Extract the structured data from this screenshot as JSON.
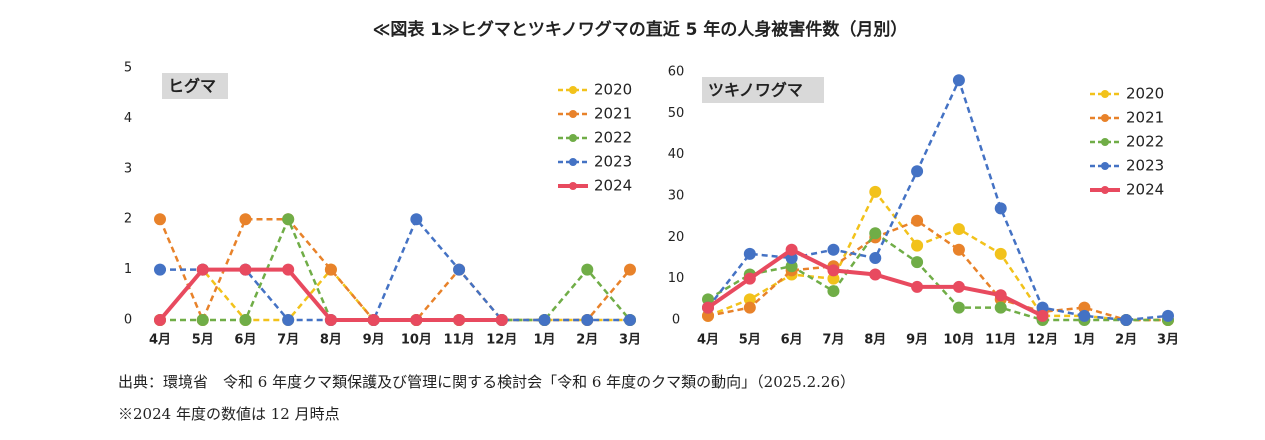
{
  "title": "≪図表 1≫ヒグマとツキノワグマの直近 5 年の人身被害件数（月別）",
  "source": "出典：環境省　令和 6 年度クマ類保護及び管理に関する検討会「令和 6 年度のクマ類の動向」（2025.2.26）",
  "note": "※2024 年度の数値は 12 月時点",
  "chart_data": [
    {
      "type": "line",
      "title": "ヒグマ",
      "legend": "top-right",
      "categories": [
        "4月",
        "5月",
        "6月",
        "7月",
        "8月",
        "9月",
        "10月",
        "11月",
        "12月",
        "1月",
        "2月",
        "3月"
      ],
      "ylim": [
        0,
        5
      ],
      "yticks": [
        0,
        1,
        2,
        3,
        4,
        5
      ],
      "series": [
        {
          "name": "2020",
          "color": "#f2c21b",
          "line_style": "dashed",
          "values": [
            0,
            1,
            0,
            0,
            1,
            0,
            0,
            0,
            0,
            0,
            0,
            0
          ]
        },
        {
          "name": "2021",
          "color": "#e8822a",
          "line_style": "dashed",
          "values": [
            2,
            0,
            2,
            2,
            1,
            0,
            0,
            1,
            0,
            0,
            0,
            1
          ]
        },
        {
          "name": "2022",
          "color": "#70ad47",
          "line_style": "dashed",
          "values": [
            0,
            0,
            0,
            2,
            0,
            0,
            0,
            0,
            0,
            0,
            1,
            0
          ]
        },
        {
          "name": "2023",
          "color": "#4472c4",
          "line_style": "dashed",
          "values": [
            1,
            1,
            1,
            0,
            0,
            0,
            2,
            1,
            0,
            0,
            0,
            0
          ]
        },
        {
          "name": "2024",
          "color": "#e84a5f",
          "line_style": "solid",
          "values": [
            0,
            1,
            1,
            1,
            0,
            0,
            0,
            0,
            0,
            null,
            null,
            null
          ]
        }
      ]
    },
    {
      "type": "line",
      "title": "ツキノワグマ",
      "legend": "top-right",
      "categories": [
        "4月",
        "5月",
        "6月",
        "7月",
        "8月",
        "9月",
        "10月",
        "11月",
        "12月",
        "1月",
        "2月",
        "3月"
      ],
      "ylim": [
        0,
        60
      ],
      "yticks": [
        0,
        10,
        20,
        30,
        40,
        50,
        60
      ],
      "series": [
        {
          "name": "2020",
          "color": "#f2c21b",
          "line_style": "dashed",
          "values": [
            1,
            5,
            11,
            10,
            31,
            18,
            22,
            16,
            1,
            1,
            0,
            0
          ]
        },
        {
          "name": "2021",
          "color": "#e8822a",
          "line_style": "dashed",
          "values": [
            1,
            3,
            12,
            13,
            20,
            24,
            17,
            5,
            2,
            3,
            0,
            0
          ]
        },
        {
          "name": "2022",
          "color": "#70ad47",
          "line_style": "dashed",
          "values": [
            5,
            11,
            13,
            7,
            21,
            14,
            3,
            3,
            0,
            0,
            0,
            0
          ]
        },
        {
          "name": "2023",
          "color": "#4472c4",
          "line_style": "dashed",
          "values": [
            3,
            16,
            15,
            17,
            15,
            36,
            58,
            27,
            3,
            1,
            0,
            1
          ]
        },
        {
          "name": "2024",
          "color": "#e84a5f",
          "line_style": "solid",
          "values": [
            3,
            10,
            17,
            12,
            11,
            8,
            8,
            6,
            1,
            null,
            null,
            null
          ]
        }
      ]
    }
  ]
}
